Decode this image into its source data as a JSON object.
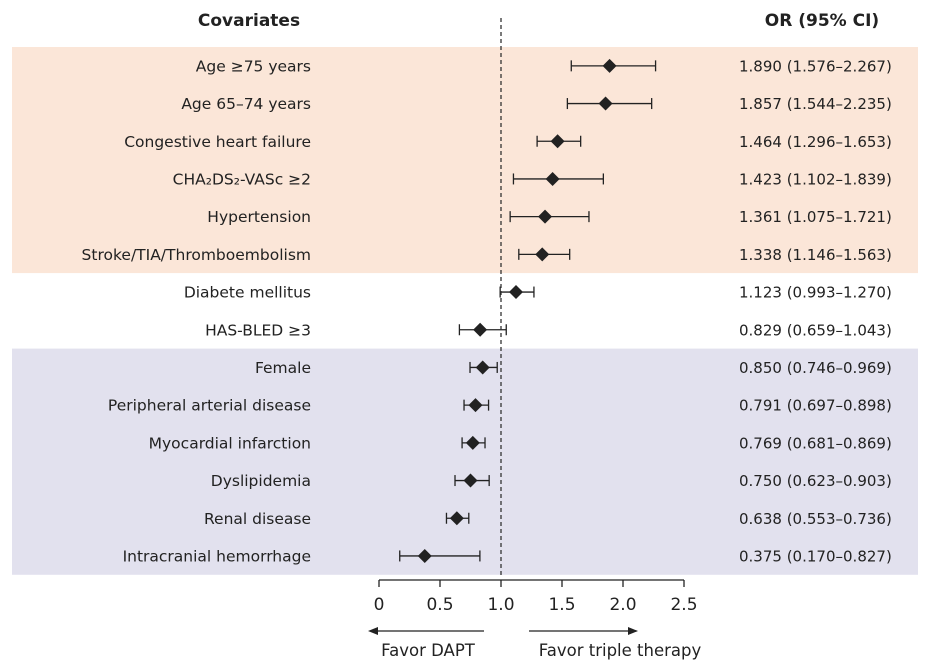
{
  "chart_data": {
    "type": "forest",
    "header_left": "Covariates",
    "header_right": "OR (95% CI)",
    "reference_value": 1.0,
    "xlim": [
      0,
      2.5
    ],
    "x_ticks": [
      "0",
      "0.5",
      "1.0",
      "1.5",
      "2.0",
      "2.5"
    ],
    "x_tick_values": [
      0,
      0.5,
      1.0,
      1.5,
      2.0,
      2.5
    ],
    "favor_left": "Favor DAPT",
    "favor_right": "Favor triple therapy",
    "group_colors": {
      "high": "#fbe6d8",
      "neutral": "#ffffff",
      "low": "#e2e1ee"
    },
    "rows": [
      {
        "label": "Age ≥75 years",
        "or": 1.89,
        "lo": 1.576,
        "hi": 2.267,
        "text": "1.890  (1.576–2.267)",
        "group": "high"
      },
      {
        "label": "Age 65–74 years",
        "or": 1.857,
        "lo": 1.544,
        "hi": 2.235,
        "text": "1.857  (1.544–2.235)",
        "group": "high"
      },
      {
        "label": "Congestive heart failure",
        "or": 1.464,
        "lo": 1.296,
        "hi": 1.653,
        "text": "1.464  (1.296–1.653)",
        "group": "high"
      },
      {
        "label": "CHA₂DS₂-VASc ≥2",
        "or": 1.423,
        "lo": 1.102,
        "hi": 1.839,
        "text": "1.423  (1.102–1.839)",
        "group": "high"
      },
      {
        "label": "Hypertension",
        "or": 1.361,
        "lo": 1.075,
        "hi": 1.721,
        "text": "1.361  (1.075–1.721)",
        "group": "high"
      },
      {
        "label": "Stroke/TIA/Thromboembolism",
        "or": 1.338,
        "lo": 1.146,
        "hi": 1.563,
        "text": "1.338  (1.146–1.563)",
        "group": "high"
      },
      {
        "label": "Diabete mellitus",
        "or": 1.123,
        "lo": 0.993,
        "hi": 1.27,
        "text": "1.123  (0.993–1.270)",
        "group": "neutral"
      },
      {
        "label": "HAS-BLED ≥3",
        "or": 0.829,
        "lo": 0.659,
        "hi": 1.043,
        "text": "0.829  (0.659–1.043)",
        "group": "neutral"
      },
      {
        "label": "Female",
        "or": 0.85,
        "lo": 0.746,
        "hi": 0.969,
        "text": "0.850  (0.746–0.969)",
        "group": "low"
      },
      {
        "label": "Peripheral arterial disease",
        "or": 0.791,
        "lo": 0.697,
        "hi": 0.898,
        "text": "0.791  (0.697–0.898)",
        "group": "low"
      },
      {
        "label": "Myocardial infarction",
        "or": 0.769,
        "lo": 0.681,
        "hi": 0.869,
        "text": "0.769  (0.681–0.869)",
        "group": "low"
      },
      {
        "label": "Dyslipidemia",
        "or": 0.75,
        "lo": 0.623,
        "hi": 0.903,
        "text": "0.750  (0.623–0.903)",
        "group": "low"
      },
      {
        "label": "Renal disease",
        "or": 0.638,
        "lo": 0.553,
        "hi": 0.736,
        "text": "0.638  (0.553–0.736)",
        "group": "low"
      },
      {
        "label": "Intracranial hemorrhage",
        "or": 0.375,
        "lo": 0.17,
        "hi": 0.827,
        "text": "0.375  (0.170–0.827)",
        "group": "low"
      }
    ]
  }
}
